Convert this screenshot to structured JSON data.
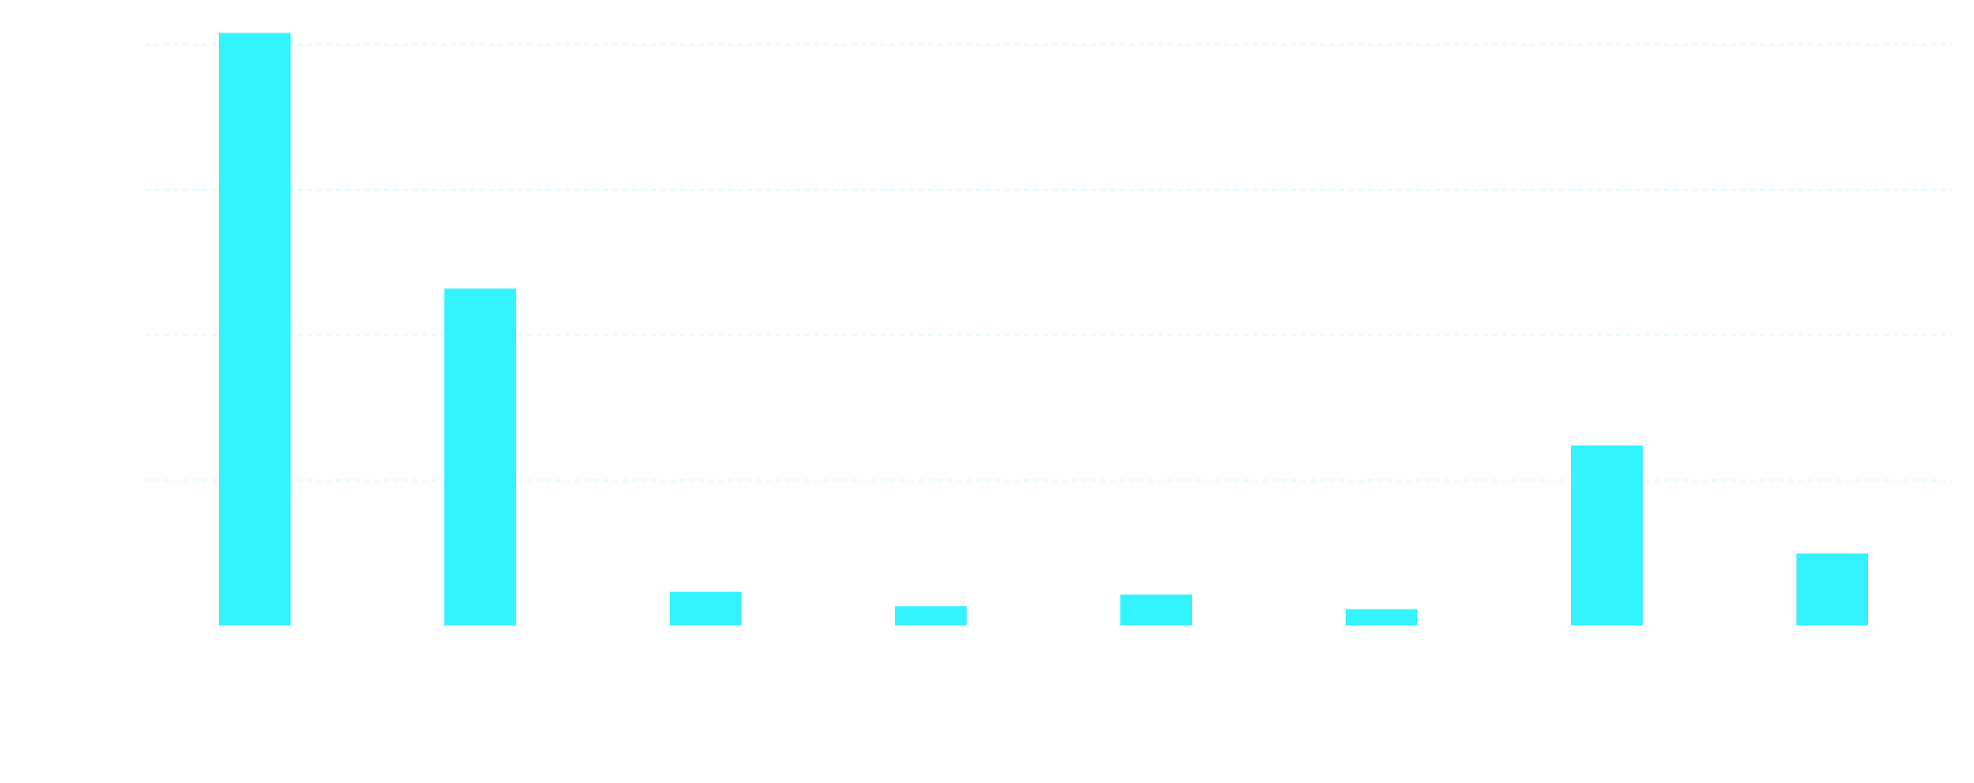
{
  "chart_data": {
    "type": "bar",
    "categories": [
      "",
      "",
      "",
      "",
      "",
      "",
      "",
      ""
    ],
    "values": [
      102,
      58,
      5.8,
      3.3,
      5.3,
      2.8,
      31,
      12.4
    ],
    "ylim": [
      0,
      100
    ],
    "yticks": [
      25,
      50,
      75,
      100
    ],
    "grid": true,
    "colors": {
      "bar": "#33f3ff",
      "grid": "#e6fbfd"
    }
  }
}
